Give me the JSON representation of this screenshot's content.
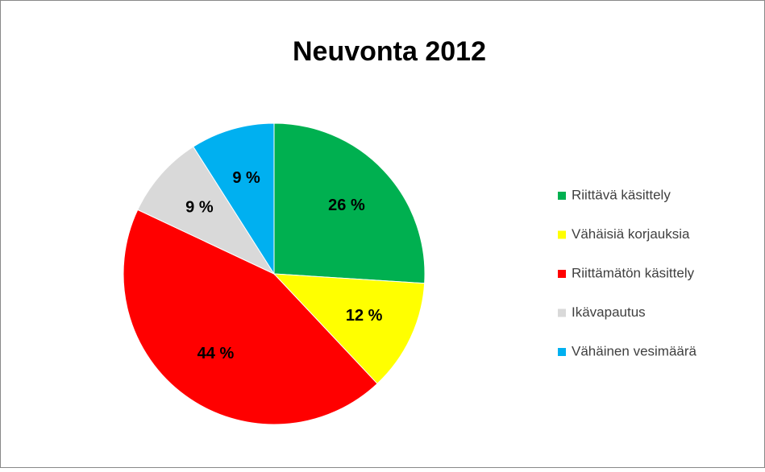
{
  "chart_data": {
    "type": "pie",
    "title": "Neuvonta 2012",
    "categories": [
      "Riittävä käsittely",
      "Vähäisiä korjauksia",
      "Riittämätön käsittely",
      "Ikävapautus",
      "Vähäinen vesimäärä"
    ],
    "values": [
      26,
      12,
      44,
      9,
      9
    ],
    "value_labels": [
      "26 %",
      "12 %",
      "44 %",
      "9 %",
      "9 %"
    ],
    "colors": [
      "#00b050",
      "#ffff00",
      "#ff0000",
      "#d9d9d9",
      "#00b0f0"
    ],
    "legend": "right"
  }
}
